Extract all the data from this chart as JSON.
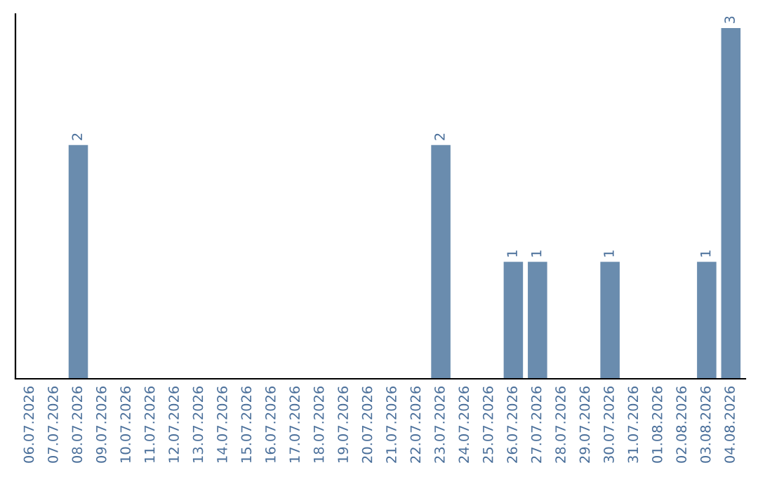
{
  "chart_data": {
    "type": "bar",
    "categories": [
      "06.07.2026",
      "07.07.2026",
      "08.07.2026",
      "09.07.2026",
      "10.07.2026",
      "11.07.2026",
      "12.07.2026",
      "13.07.2026",
      "14.07.2026",
      "15.07.2026",
      "16.07.2026",
      "17.07.2026",
      "18.07.2026",
      "19.07.2026",
      "20.07.2026",
      "21.07.2026",
      "22.07.2026",
      "23.07.2026",
      "24.07.2026",
      "25.07.2026",
      "26.07.2026",
      "27.07.2026",
      "28.07.2026",
      "29.07.2026",
      "30.07.2026",
      "31.07.2026",
      "01.08.2026",
      "02.08.2026",
      "03.08.2026",
      "04.08.2026"
    ],
    "values": [
      0,
      0,
      2,
      0,
      0,
      0,
      0,
      0,
      0,
      0,
      0,
      0,
      0,
      0,
      0,
      0,
      0,
      2,
      0,
      0,
      1,
      1,
      0,
      0,
      1,
      0,
      0,
      0,
      1,
      3
    ],
    "value_labels": [
      null,
      null,
      "2",
      null,
      null,
      null,
      null,
      null,
      null,
      null,
      null,
      null,
      null,
      null,
      null,
      null,
      null,
      "2",
      null,
      null,
      "1",
      "1",
      null,
      null,
      "1",
      null,
      null,
      null,
      "1",
      "3"
    ],
    "color": "#6a8cae",
    "tick_labels": "x",
    "grid": false,
    "legend": false
  }
}
